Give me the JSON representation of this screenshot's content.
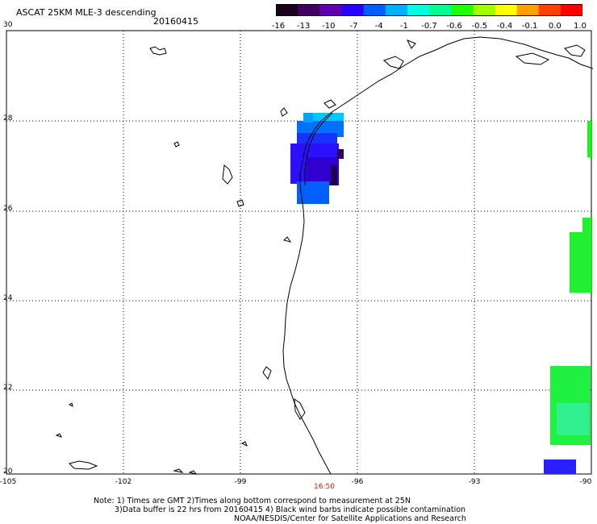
{
  "header": {
    "title": "ASCAT 25KM MLE-3 descending",
    "date": "20160415"
  },
  "colorbar": {
    "labels": [
      "-16",
      "-13",
      "-10",
      "-7",
      "-4",
      "-1",
      "-0.7",
      "-0.6",
      "-0.5",
      "-0.4",
      "-0.1",
      "0.0",
      "1.0"
    ],
    "colors": [
      "#1a001a",
      "#400060",
      "#6000b0",
      "#2a00ff",
      "#0060ff",
      "#00b0ff",
      "#00ffe0",
      "#00ff90",
      "#20ff00",
      "#a0ff00",
      "#ffff00",
      "#ffa000",
      "#ff4000",
      "#ff0000"
    ]
  },
  "axes": {
    "lat_labels": [
      "30",
      "28",
      "26",
      "24",
      "22",
      "20"
    ],
    "lon_labels": [
      "-105",
      "-102",
      "-99",
      "-96",
      "-93",
      "-90"
    ]
  },
  "time_marker": "16:50",
  "notes": [
    "Note: 1) Times are GMT 2)Times along bottom correspond to measurement at 25N",
    "3)Data buffer is 22 hrs from 20160415 4) Black wind barbs indicate possible contamination",
    "NOAA/NESDIS/Center for Satellite Applications and Research"
  ]
}
